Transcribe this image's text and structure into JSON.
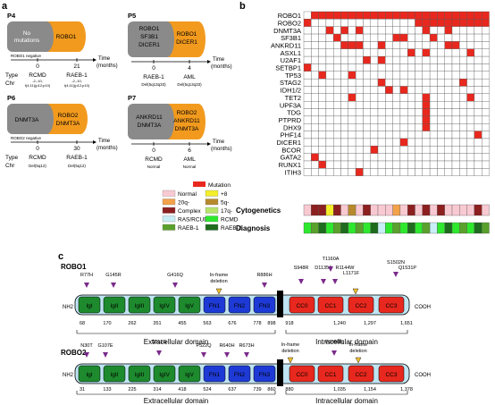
{
  "panels": {
    "a": "a",
    "b": "b",
    "c": "c"
  },
  "panel_a": {
    "time_label": "Time",
    "months_label": "(months)",
    "type_label": "Type",
    "chr_label": "Chr",
    "p4": {
      "name": "P4",
      "grey": [
        "No",
        "mutations"
      ],
      "orange": [
        "ROBO1"
      ],
      "negative": "ROBO1 negative",
      "t": [
        "0",
        "21"
      ],
      "type": [
        "RCMD",
        "RAEB-1"
      ],
      "chr": [
        "-2,-10,",
        "t(4;11)(p12;p10)"
      ]
    },
    "p5": {
      "name": "P5",
      "grey": [
        "ROBO1",
        "SF3B1",
        "DICER1"
      ],
      "orange": [
        "ROBO1",
        "DICER1"
      ],
      "t": [
        "0",
        "4"
      ],
      "type": [
        "RAEB-1",
        "AML"
      ],
      "chr": [
        "Del(5q13q33)",
        "Del(5q13q33)"
      ]
    },
    "p6": {
      "name": "P6",
      "grey": [
        "DNMT3A"
      ],
      "orange": [
        "ROBO2",
        "DNMT3A"
      ],
      "negative": "ROBO2 negative",
      "t": [
        "0",
        "30"
      ],
      "type": [
        "RCMD",
        "RAEB-1"
      ],
      "chr": [
        "Del(5q12)",
        "Del(5q12)"
      ]
    },
    "p7": {
      "name": "P7",
      "grey": [
        "ANKRD11",
        "DNMT3A"
      ],
      "orange": [
        "ROBO2",
        "ANKRD11",
        "DNMT3A"
      ],
      "t": [
        "0",
        "6"
      ],
      "type": [
        "RCMD",
        "AML"
      ],
      "chr": [
        "Normal",
        "Normal"
      ]
    }
  },
  "panel_b": {
    "mutation_legend": "Mutation",
    "mutation_color": "#e8281e",
    "genes": [
      "ROBO1",
      "ROBO2",
      "DNMT3A",
      "SF3B1",
      "ANKRD11",
      "ASXL1",
      "U2AF1",
      "SETBP1",
      "TP53",
      "STAG2",
      "IDH1/2",
      "TET2",
      "UPF3A",
      "TDG",
      "PTPRD",
      "DHX9",
      "PHF14",
      "DICER1",
      "BCOR",
      "GATA2",
      "RUNX1",
      "ITIH3"
    ],
    "cytogenetics_label": "Cytogenetics",
    "diagnosis_label": "Diagnosis",
    "legend_left": [
      {
        "label": "Normal",
        "color": "#f9c9d2"
      },
      {
        "label": "20q-",
        "color": "#f3a24a"
      },
      {
        "label": "Complex",
        "color": "#8c1f1f"
      },
      {
        "label": "RAS/RCUD",
        "color": "#c8eef6"
      },
      {
        "label": "RAEB-1",
        "color": "#5aa02c"
      }
    ],
    "legend_right": [
      {
        "label": "+8",
        "color": "#f4ee2a"
      },
      {
        "label": "5q-",
        "color": "#b68a2c"
      },
      {
        "label": "17q-",
        "color": "#b7e26b"
      },
      {
        "label": "RCMD",
        "color": "#2ee82e"
      },
      {
        "label": "RAEB-2",
        "color": "#1e6b1e"
      }
    ],
    "matrix": [
      [
        0,
        1,
        1,
        1,
        1,
        1,
        1,
        1,
        1,
        1,
        1,
        1,
        1,
        1,
        1,
        1,
        1,
        1,
        1,
        1,
        1,
        1,
        1,
        1,
        1
      ],
      [
        1,
        0,
        0,
        0,
        0,
        0,
        0,
        0,
        0,
        0,
        0,
        0,
        0,
        0,
        0,
        1,
        1,
        1,
        1,
        1,
        1,
        1,
        1,
        1,
        1
      ],
      [
        0,
        0,
        0,
        1,
        0,
        1,
        0,
        1,
        0,
        0,
        0,
        0,
        0,
        0,
        0,
        0,
        1,
        0,
        0,
        1,
        0,
        0,
        0,
        0,
        0
      ],
      [
        0,
        0,
        0,
        0,
        1,
        0,
        0,
        0,
        0,
        0,
        0,
        0,
        1,
        1,
        0,
        0,
        0,
        1,
        0,
        0,
        0,
        0,
        0,
        0,
        0
      ],
      [
        0,
        0,
        0,
        0,
        0,
        1,
        1,
        1,
        0,
        0,
        1,
        0,
        0,
        0,
        0,
        0,
        0,
        0,
        0,
        1,
        1,
        0,
        0,
        0,
        0
      ],
      [
        0,
        0,
        0,
        0,
        0,
        0,
        0,
        0,
        0,
        0,
        0,
        0,
        0,
        0,
        1,
        0,
        1,
        0,
        0,
        0,
        0,
        0,
        1,
        0,
        0
      ],
      [
        0,
        0,
        0,
        0,
        0,
        0,
        0,
        0,
        1,
        0,
        1,
        0,
        0,
        0,
        0,
        0,
        0,
        0,
        0,
        0,
        0,
        0,
        0,
        0,
        0
      ],
      [
        1,
        0,
        0,
        0,
        0,
        0,
        0,
        0,
        0,
        0,
        0,
        0,
        0,
        0,
        0,
        0,
        0,
        0,
        0,
        0,
        0,
        0,
        0,
        0,
        0
      ],
      [
        0,
        0,
        1,
        0,
        0,
        0,
        1,
        0,
        0,
        0,
        0,
        0,
        0,
        0,
        0,
        0,
        0,
        0,
        0,
        0,
        0,
        0,
        0,
        0,
        0
      ],
      [
        0,
        0,
        0,
        0,
        0,
        0,
        0,
        0,
        0,
        0,
        1,
        0,
        0,
        0,
        0,
        0,
        0,
        0,
        0,
        0,
        0,
        1,
        0,
        0,
        0
      ],
      [
        0,
        0,
        0,
        0,
        0,
        0,
        0,
        0,
        0,
        0,
        0,
        1,
        0,
        1,
        0,
        0,
        0,
        0,
        0,
        0,
        0,
        0,
        0,
        0,
        0
      ],
      [
        0,
        0,
        0,
        0,
        0,
        0,
        1,
        0,
        0,
        0,
        0,
        0,
        0,
        0,
        0,
        0,
        1,
        0,
        0,
        0,
        0,
        0,
        1,
        0,
        0
      ],
      [
        0,
        0,
        0,
        0,
        0,
        0,
        0,
        0,
        0,
        0,
        0,
        0,
        0,
        0,
        0,
        0,
        1,
        0,
        0,
        0,
        0,
        0,
        0,
        0,
        0
      ],
      [
        0,
        0,
        0,
        0,
        0,
        0,
        0,
        0,
        0,
        0,
        0,
        0,
        0,
        0,
        0,
        0,
        1,
        0,
        0,
        0,
        0,
        0,
        0,
        0,
        0
      ],
      [
        0,
        0,
        0,
        0,
        0,
        0,
        0,
        0,
        0,
        0,
        0,
        0,
        0,
        0,
        0,
        0,
        1,
        0,
        0,
        0,
        0,
        0,
        0,
        0,
        0
      ],
      [
        0,
        0,
        0,
        0,
        0,
        0,
        0,
        0,
        0,
        0,
        0,
        0,
        0,
        0,
        0,
        0,
        1,
        0,
        0,
        0,
        0,
        0,
        0,
        0,
        0
      ],
      [
        0,
        0,
        0,
        0,
        0,
        0,
        0,
        0,
        0,
        0,
        0,
        0,
        0,
        0,
        0,
        0,
        0,
        0,
        0,
        0,
        0,
        0,
        0,
        1,
        0
      ],
      [
        0,
        0,
        0,
        0,
        0,
        0,
        0,
        0,
        0,
        0,
        0,
        0,
        0,
        1,
        0,
        0,
        0,
        0,
        0,
        0,
        0,
        0,
        0,
        0,
        0
      ],
      [
        0,
        0,
        0,
        0,
        0,
        0,
        0,
        0,
        0,
        1,
        0,
        0,
        0,
        0,
        0,
        0,
        0,
        0,
        0,
        0,
        0,
        0,
        0,
        0,
        0
      ],
      [
        0,
        1,
        0,
        0,
        0,
        0,
        0,
        0,
        0,
        0,
        0,
        0,
        0,
        0,
        0,
        0,
        0,
        0,
        0,
        0,
        0,
        0,
        0,
        0,
        0
      ],
      [
        0,
        0,
        1,
        0,
        0,
        0,
        0,
        0,
        0,
        0,
        0,
        0,
        0,
        0,
        0,
        0,
        0,
        0,
        0,
        0,
        0,
        0,
        0,
        0,
        0
      ],
      [
        0,
        0,
        0,
        0,
        0,
        0,
        0,
        1,
        0,
        0,
        0,
        0,
        0,
        0,
        0,
        0,
        0,
        0,
        0,
        0,
        0,
        0,
        0,
        0,
        0
      ]
    ],
    "cytogenetics": [
      "Normal",
      "Complex",
      "Complex",
      "+8",
      "Complex",
      "Normal",
      "5q-",
      "Normal",
      "Complex",
      "Normal",
      "Normal",
      "Normal",
      "20q-",
      "Normal",
      "Complex",
      "Normal",
      "Complex",
      "Normal",
      "Complex",
      "Normal",
      "Normal",
      "Normal",
      "Normal",
      "Complex",
      "Normal"
    ],
    "diagnosis": [
      "RCMD",
      "RAEB-1",
      "RAEB-2",
      "RCMD",
      "RAEB-1",
      "RAEB-2",
      "RCMD",
      "RAEB-1",
      "RCMD",
      "RAEB-2",
      "RAS/RCUD",
      "RCMD",
      "RAEB-1",
      "RCMD",
      "RAEB-2",
      "RCMD",
      "RAEB-1",
      "RAS/RCUD",
      "RCMD",
      "RAEB-2",
      "RCMD",
      "RAEB-1",
      "RCMD",
      "RAEB-2",
      "RAEB-1"
    ]
  },
  "panel_c": {
    "nh2": "NH2",
    "cooh": "COOH",
    "robo1": {
      "name": "ROBO1",
      "domains": [
        "IgI",
        "IgII",
        "IgIII",
        "IgIV",
        "IgV",
        "FN1",
        "FN2",
        "FN3",
        "CC0",
        "CC1",
        "CC2",
        "CC3"
      ],
      "ext_positions": [
        "68",
        "170",
        "262",
        "351",
        "455",
        "563",
        "676",
        "778",
        "898"
      ],
      "int_positions": [
        "918",
        "1,240",
        "1,297",
        "1,651"
      ],
      "mutations": [
        "R77H",
        "G145R",
        "G416Q",
        "R886H",
        "S948R",
        "D1135A",
        "T1160A",
        "R1144W",
        "L1171F",
        "S1502N",
        "Q1531P"
      ],
      "deletion": [
        "In-frame",
        "deletion"
      ],
      "extracellular": "Extracellular domain",
      "intracellular": "Intracellular domain"
    },
    "robo2": {
      "name": "ROBO2",
      "domains": [
        "IgI",
        "IgII",
        "IgIII",
        "IgIV",
        "IgV",
        "FN1",
        "FN2",
        "FN3",
        "CC0",
        "CC1",
        "CC2",
        "CC3"
      ],
      "ext_positions": [
        "31",
        "133",
        "225",
        "314",
        "418",
        "524",
        "637",
        "739",
        "860"
      ],
      "int_positions": [
        "880",
        "1,035",
        "1,154",
        "1,378"
      ],
      "mutations": [
        "N30T",
        "G107E",
        "S311G",
        "P522Q",
        "R640H",
        "R673H",
        "P1058R"
      ],
      "deletion": [
        "In-frame",
        "deletion"
      ],
      "extracellular": "Extracellular domain",
      "intracellular": "Intracellular domain"
    }
  }
}
